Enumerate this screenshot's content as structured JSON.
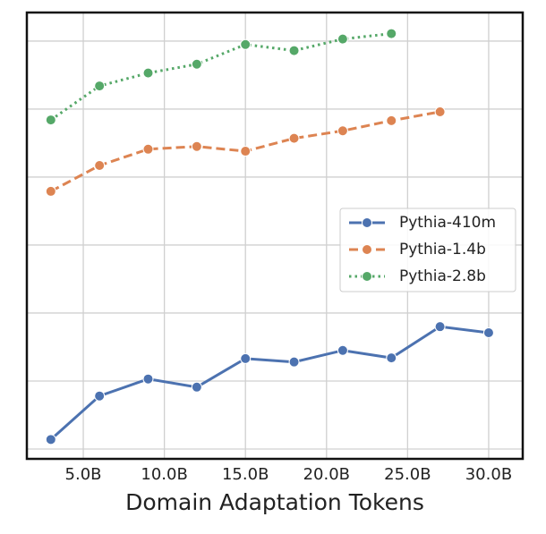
{
  "chart_data": {
    "type": "line",
    "xlabel": "Domain Adaptation Tokens",
    "xlim": [
      1.52,
      32.1
    ],
    "xticks": [
      {
        "value": 5,
        "label": "5.0B"
      },
      {
        "value": 10,
        "label": "10.0B"
      },
      {
        "value": 15,
        "label": "15.0B"
      },
      {
        "value": 20,
        "label": "20.0B"
      },
      {
        "value": 25,
        "label": "25.0B"
      },
      {
        "value": 30,
        "label": "30.0B"
      }
    ],
    "ylim": [
      -0.145,
      6.42
    ],
    "yticks": [
      0,
      1,
      2,
      3,
      4,
      5,
      6
    ],
    "grid": true,
    "legend": "center right",
    "series": [
      {
        "name": "Pythia-410m",
        "color": "#4c72b0",
        "dash": "solid",
        "x": [
          3,
          6,
          9,
          12,
          15,
          18,
          21,
          24,
          27,
          30
        ],
        "values": [
          0.14,
          0.78,
          1.03,
          0.91,
          1.33,
          1.28,
          1.45,
          1.34,
          1.8,
          1.71
        ]
      },
      {
        "name": "Pythia-1.4b",
        "color": "#dd8452",
        "dash": "dashed",
        "x": [
          3,
          6,
          9,
          12,
          15,
          18,
          21,
          24,
          27
        ],
        "values": [
          3.79,
          4.17,
          4.41,
          4.45,
          4.38,
          4.57,
          4.68,
          4.83,
          4.96
        ]
      },
      {
        "name": "Pythia-2.8b",
        "color": "#55a868",
        "dash": "dotted",
        "x": [
          3,
          6,
          9,
          12,
          15,
          18,
          21,
          24
        ],
        "values": [
          4.84,
          5.34,
          5.53,
          5.66,
          5.95,
          5.86,
          6.03,
          6.11
        ]
      }
    ]
  }
}
